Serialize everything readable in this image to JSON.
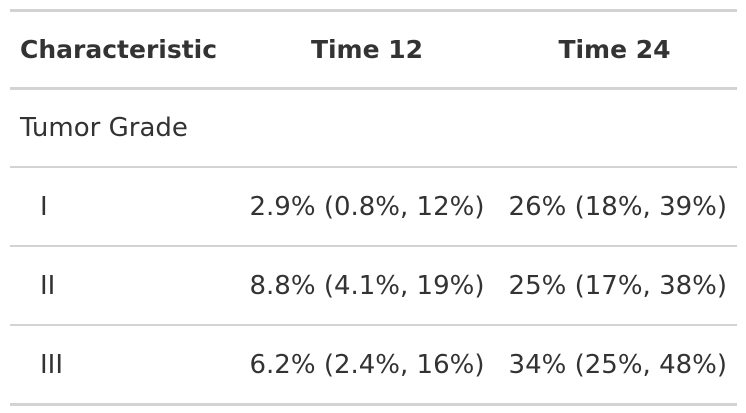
{
  "table": {
    "headers": [
      "Characteristic",
      "Time 12",
      "Time 24"
    ],
    "group_label": "Tumor Grade",
    "rows": [
      {
        "level": "I",
        "time12": "2.9% (0.8%, 12%)",
        "time24": "26% (18%, 39%)"
      },
      {
        "level": "II",
        "time12": "8.8% (4.1%, 19%)",
        "time24": "25% (17%, 38%)"
      },
      {
        "level": "III",
        "time12": "6.2% (2.4%, 16%)",
        "time24": "34% (25%, 48%)"
      }
    ]
  }
}
